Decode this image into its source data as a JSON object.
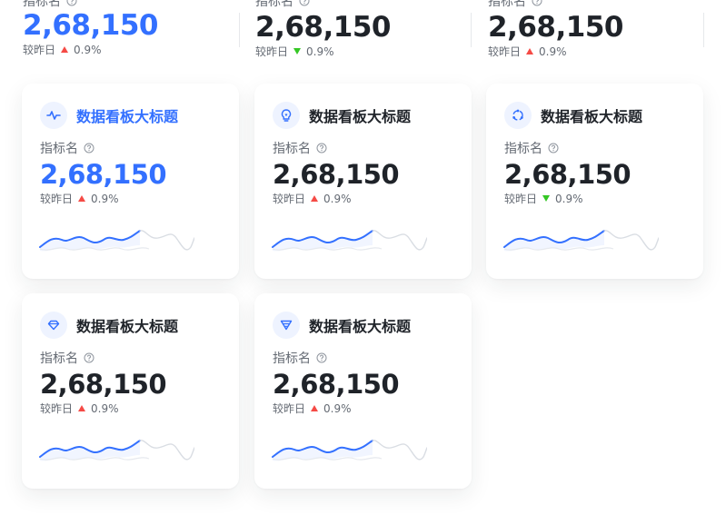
{
  "top_stats": [
    {
      "label": "指标名",
      "value": "2,68,150",
      "compare_label": "较昨日",
      "delta": "0.9%",
      "trend": "up",
      "accent": true
    },
    {
      "label": "指标名",
      "value": "2,68,150",
      "compare_label": "较昨日",
      "delta": "0.9%",
      "trend": "down",
      "accent": false
    },
    {
      "label": "指标名",
      "value": "2,68,150",
      "compare_label": "较昨日",
      "delta": "0.9%",
      "trend": "up",
      "accent": false
    }
  ],
  "cards": [
    {
      "icon": "activity-icon",
      "title": "数据看板大标题",
      "title_accent": true,
      "label": "指标名",
      "value": "2,68,150",
      "value_accent": true,
      "compare_label": "较昨日",
      "delta": "0.9%",
      "trend": "up"
    },
    {
      "icon": "lightbulb-icon",
      "title": "数据看板大标题",
      "title_accent": false,
      "label": "指标名",
      "value": "2,68,150",
      "value_accent": false,
      "compare_label": "较昨日",
      "delta": "0.9%",
      "trend": "up"
    },
    {
      "icon": "cycle-icon",
      "title": "数据看板大标题",
      "title_accent": false,
      "label": "指标名",
      "value": "2,68,150",
      "value_accent": false,
      "compare_label": "较昨日",
      "delta": "0.9%",
      "trend": "down"
    },
    {
      "icon": "diamond-icon",
      "title": "数据看板大标题",
      "title_accent": false,
      "label": "指标名",
      "value": "2,68,150",
      "value_accent": false,
      "compare_label": "较昨日",
      "delta": "0.9%",
      "trend": "up"
    },
    {
      "icon": "funnel-icon",
      "title": "数据看板大标题",
      "title_accent": false,
      "label": "指标名",
      "value": "2,68,150",
      "value_accent": false,
      "compare_label": "较昨日",
      "delta": "0.9%",
      "trend": "up"
    }
  ],
  "colors": {
    "accent": "#3370ff",
    "up": "#f54a45",
    "down": "#34c724",
    "muted": "#646a73"
  }
}
